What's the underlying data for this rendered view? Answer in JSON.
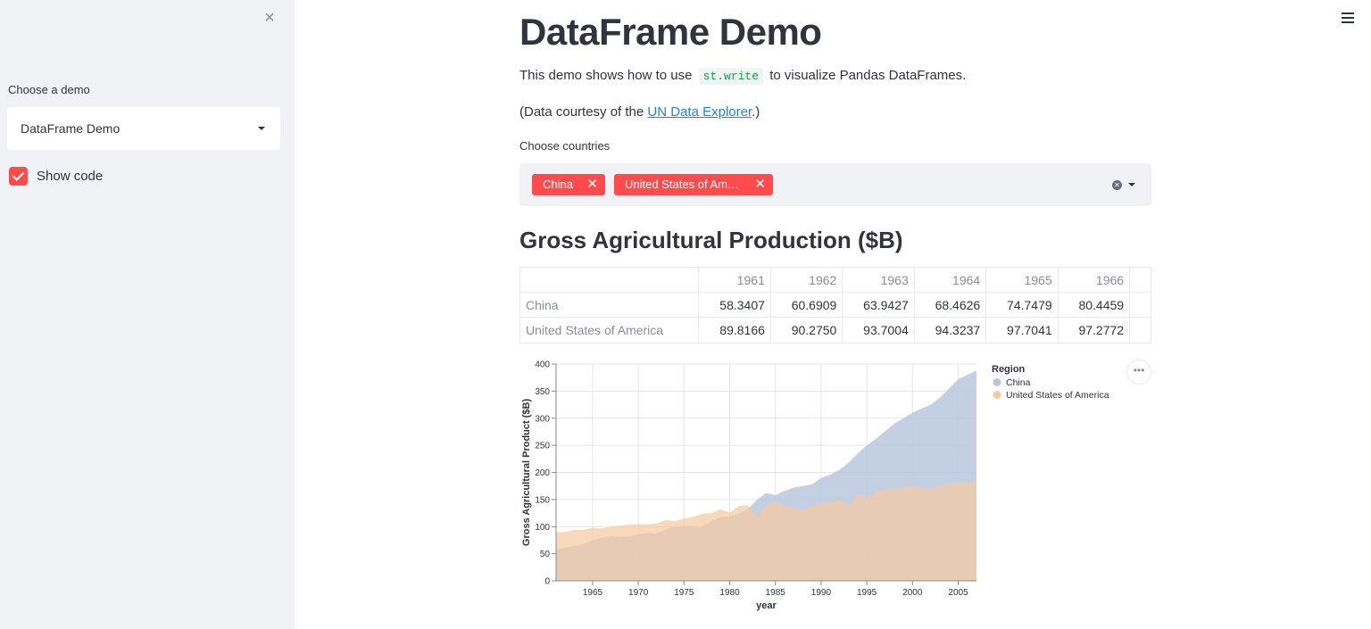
{
  "sidebar": {
    "close_icon": "×",
    "demo_label": "Choose a demo",
    "demo_selected": "DataFrame Demo",
    "show_code_label": "Show code",
    "show_code_checked": true
  },
  "header": {
    "menu_icon": "hamburger-icon"
  },
  "main": {
    "title": "DataFrame Demo",
    "intro_before": "This demo shows how to use",
    "intro_code": "st.write",
    "intro_after": "to visualize Pandas DataFrames.",
    "courtesy_before": "(Data courtesy of the ",
    "courtesy_link": "UN Data Explorer",
    "courtesy_after": ".)",
    "countries_label": "Choose countries",
    "selected_countries": [
      "China",
      "United States of Am…"
    ],
    "section_title": "Gross Agricultural Production ($B)"
  },
  "table": {
    "columns": [
      "1961",
      "1962",
      "1963",
      "1964",
      "1965",
      "1966"
    ],
    "rows": [
      {
        "index": "China",
        "values": [
          "58.3407",
          "60.6909",
          "63.9427",
          "68.4626",
          "74.7479",
          "80.4459"
        ]
      },
      {
        "index": "United States of America",
        "values": [
          "89.8166",
          "90.2750",
          "93.7004",
          "94.3237",
          "97.7041",
          "97.2772"
        ]
      }
    ]
  },
  "colors": {
    "accent": "#ff4b4b",
    "china": "#b8c8df",
    "usa": "#f7c9a0",
    "overlap": "#d4b29a"
  },
  "chart_data": {
    "type": "area",
    "xlabel": "year",
    "ylabel": "Gross Agricultural Product ($B)",
    "xlim": [
      1961,
      2007
    ],
    "ylim": [
      0,
      400
    ],
    "x_ticks": [
      1965,
      1970,
      1975,
      1980,
      1985,
      1990,
      1995,
      2000,
      2005
    ],
    "y_ticks": [
      0,
      50,
      100,
      150,
      200,
      250,
      300,
      350,
      400
    ],
    "legend_title": "Region",
    "legend_position": "right",
    "grid": true,
    "x": [
      1961,
      1962,
      1963,
      1964,
      1965,
      1966,
      1967,
      1968,
      1969,
      1970,
      1971,
      1972,
      1973,
      1974,
      1975,
      1976,
      1977,
      1978,
      1979,
      1980,
      1981,
      1982,
      1983,
      1984,
      1985,
      1986,
      1987,
      1988,
      1989,
      1990,
      1991,
      1992,
      1993,
      1994,
      1995,
      1996,
      1997,
      1998,
      1999,
      2000,
      2001,
      2002,
      2003,
      2004,
      2005,
      2006,
      2007
    ],
    "series": [
      {
        "name": "China",
        "values": [
          58,
          61,
          64,
          68,
          75,
          80,
          82,
          81,
          82,
          86,
          88,
          87,
          95,
          100,
          101,
          100,
          99,
          110,
          118,
          119,
          124,
          133,
          150,
          162,
          158,
          166,
          172,
          175,
          178,
          190,
          196,
          205,
          218,
          235,
          250,
          262,
          276,
          290,
          300,
          310,
          318,
          325,
          338,
          355,
          372,
          380,
          388
        ]
      },
      {
        "name": "United States of America",
        "values": [
          90,
          90,
          94,
          94,
          98,
          97,
          100,
          102,
          104,
          105,
          104,
          106,
          112,
          110,
          115,
          118,
          124,
          125,
          132,
          126,
          138,
          140,
          118,
          140,
          145,
          138,
          135,
          130,
          140,
          142,
          145,
          150,
          140,
          160,
          152,
          165,
          168,
          170,
          172,
          175,
          172,
          170,
          175,
          180,
          182,
          180,
          185
        ]
      }
    ]
  }
}
